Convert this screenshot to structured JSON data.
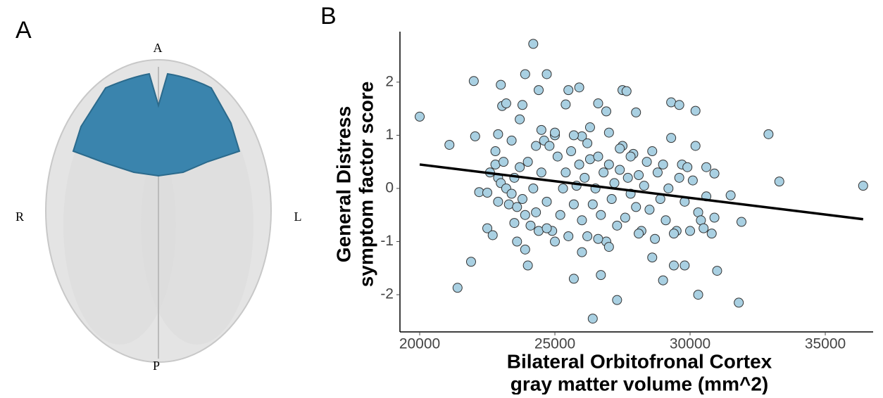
{
  "panel_labels": [
    "A",
    "B"
  ],
  "orientation": {
    "anterior": "A",
    "right": "R",
    "left": "L",
    "posterior": "P"
  },
  "chart_data": {
    "type": "scatter",
    "x_label": [
      "Bilateral Orbitofronal Cortex",
      "gray matter volume (mm^2)"
    ],
    "y_label": [
      "General Distress",
      "symptom factor score"
    ],
    "color": "#a9d0e2",
    "xlim": [
      19270,
      36770
    ],
    "ylim": [
      -2.7,
      2.95
    ],
    "xticks": [
      20000,
      25000,
      30000,
      35000
    ],
    "yticks": [
      -2,
      -1,
      0,
      1,
      2
    ],
    "x": [
      20000,
      21100,
      21400,
      22000,
      22050,
      21900,
      22200,
      22500,
      22800,
      22900,
      23000,
      23050,
      23200,
      23500,
      23700,
      23800,
      23900,
      24200,
      24400,
      24700,
      25000,
      25400,
      25500,
      25900,
      26000,
      26300,
      26600,
      26900,
      27000,
      27500,
      27650,
      28000,
      29300,
      29600,
      30200,
      30200,
      30600,
      30900,
      31500,
      31900,
      32900,
      33300,
      36400,
      31800,
      31000,
      30300,
      29400,
      29800,
      29000,
      28600,
      27300,
      26700,
      26400,
      25700,
      24000,
      23600,
      22500,
      22700,
      22600,
      22800,
      22900,
      23000,
      23100,
      23200,
      23300,
      23400,
      23500,
      23600,
      23700,
      23800,
      23900,
      24000,
      24100,
      24200,
      24300,
      24400,
      24500,
      24600,
      24700,
      24800,
      24900,
      25000,
      25100,
      25200,
      25300,
      25400,
      25500,
      25600,
      25700,
      25800,
      25900,
      26000,
      26100,
      26200,
      26300,
      26400,
      26500,
      26600,
      26700,
      26800,
      26900,
      27000,
      27100,
      27200,
      27300,
      27400,
      27500,
      27600,
      27700,
      27800,
      27900,
      28000,
      28100,
      28200,
      28300,
      28400,
      28500,
      28600,
      28700,
      28800,
      28900,
      29000,
      29100,
      29200,
      29300,
      29500,
      29600,
      29700,
      29800,
      29900,
      30000,
      30100,
      30300,
      30400,
      30500,
      30600,
      30800,
      30900,
      24300,
      25000,
      25700,
      26200,
      27400,
      23400,
      22900,
      24700,
      26600,
      28100,
      29400,
      26000,
      27000,
      23900,
      24500,
      27800
    ],
    "y": [
      1.35,
      0.82,
      -1.87,
      2.02,
      0.98,
      -1.38,
      -0.07,
      -0.08,
      0.7,
      1.02,
      1.95,
      1.55,
      1.6,
      -0.65,
      1.3,
      1.57,
      2.15,
      2.72,
      1.85,
      2.15,
      1.0,
      1.58,
      1.85,
      1.9,
      0.98,
      1.15,
      1.6,
      1.45,
      1.05,
      1.85,
      1.83,
      1.43,
      1.62,
      1.57,
      1.46,
      0.8,
      0.4,
      0.28,
      -0.13,
      -0.63,
      1.02,
      0.13,
      0.05,
      -2.15,
      -1.55,
      -2.0,
      -1.45,
      -1.45,
      -1.73,
      -1.3,
      -2.1,
      -1.63,
      -2.45,
      -1.7,
      -1.45,
      -1.0,
      -0.75,
      -0.88,
      0.3,
      0.45,
      0.2,
      0.1,
      0.5,
      0.0,
      -0.3,
      -0.1,
      0.2,
      -0.35,
      0.4,
      -0.2,
      -0.5,
      0.5,
      -0.7,
      0.0,
      -0.45,
      -0.8,
      0.3,
      0.9,
      -0.25,
      0.8,
      -0.8,
      -1.0,
      0.6,
      -0.5,
      0.0,
      0.3,
      -0.9,
      0.7,
      -0.3,
      0.05,
      0.45,
      -0.6,
      0.2,
      -0.9,
      0.55,
      -0.3,
      0.0,
      0.6,
      -0.5,
      0.3,
      -1.0,
      0.45,
      -0.2,
      0.1,
      -0.7,
      0.35,
      0.8,
      -0.55,
      0.2,
      -0.1,
      0.65,
      -0.35,
      0.25,
      -0.8,
      0.05,
      0.5,
      -0.4,
      0.7,
      -0.95,
      0.3,
      -0.2,
      0.45,
      -0.6,
      0.0,
      0.95,
      -0.8,
      0.2,
      0.45,
      -0.25,
      0.4,
      -0.8,
      0.15,
      -0.45,
      -0.6,
      -0.75,
      -0.15,
      -0.85,
      -0.55,
      0.8,
      1.05,
      1.0,
      0.85,
      0.75,
      0.9,
      -0.25,
      -0.75,
      -0.95,
      -0.85,
      -0.85,
      -1.2,
      -1.1,
      -1.15,
      1.1,
      0.6
    ],
    "fit_line": {
      "color": "#000000",
      "x": [
        20000,
        36400
      ],
      "y": [
        0.45,
        -0.58
      ]
    }
  }
}
